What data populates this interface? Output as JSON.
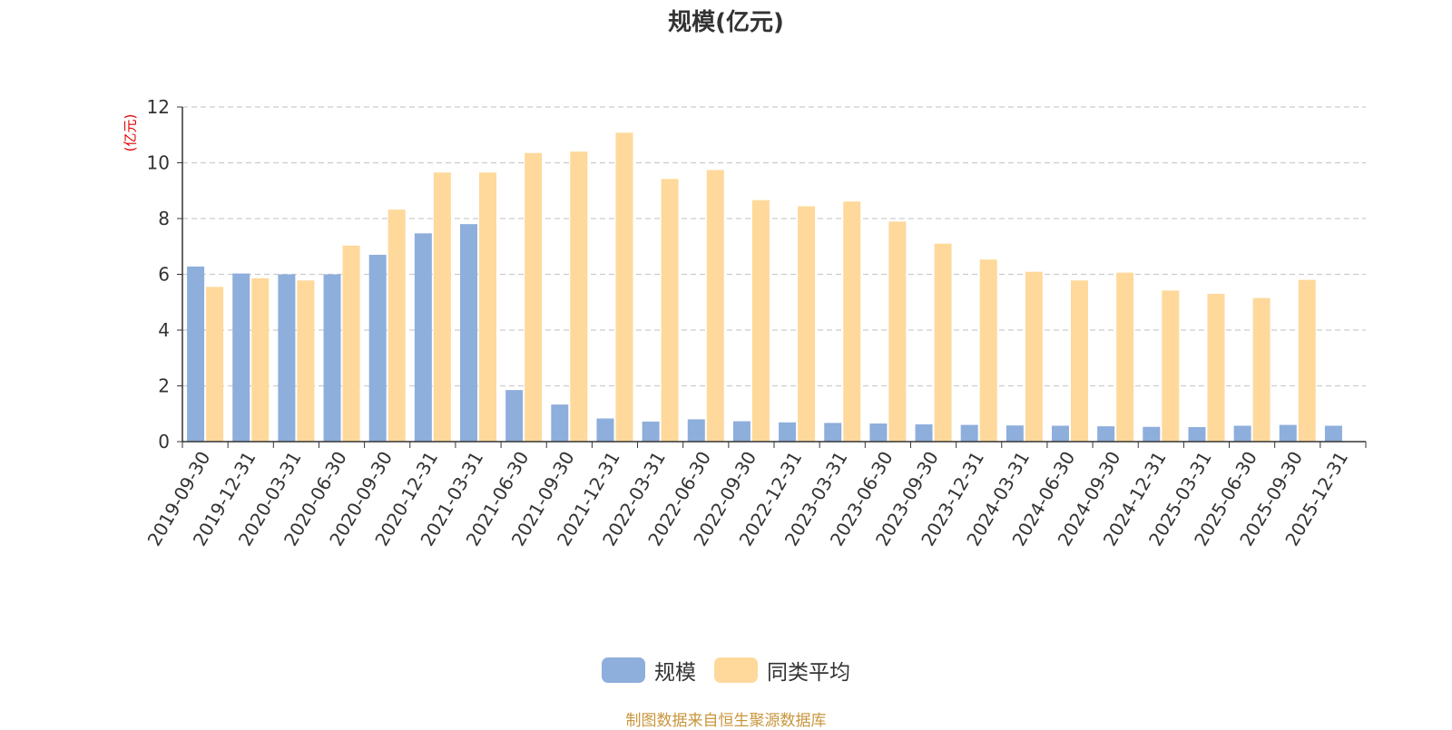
{
  "chart_data": {
    "type": "bar",
    "title": "规模(亿元)",
    "ylabel": "(亿元)",
    "xlabel": "",
    "ylim": [
      0,
      12
    ],
    "yticks": [
      0,
      2,
      4,
      6,
      8,
      10,
      12
    ],
    "grid": true,
    "legend_position": "bottom",
    "categories": [
      "2019-09-30",
      "2019-12-31",
      "2020-03-31",
      "2020-06-30",
      "2020-09-30",
      "2020-12-31",
      "2021-03-31",
      "2021-06-30",
      "2021-09-30",
      "2021-12-31",
      "2022-03-31",
      "2022-06-30",
      "2022-09-30",
      "2022-12-31",
      "2023-03-31",
      "2023-06-30",
      "2023-09-30",
      "2023-12-31",
      "2024-03-31",
      "2024-06-30",
      "2024-09-30",
      "2024-12-31",
      "2025-03-31",
      "2025-06-30",
      "2025-09-30",
      "2025-12-31"
    ],
    "series": [
      {
        "name": "规模",
        "color": "#8eaedc",
        "values": [
          6.28,
          6.03,
          6.0,
          6.0,
          6.7,
          7.47,
          7.8,
          1.85,
          1.33,
          0.83,
          0.72,
          0.8,
          0.73,
          0.69,
          0.67,
          0.65,
          0.62,
          0.6,
          0.58,
          0.57,
          0.55,
          0.53,
          0.52,
          0.57,
          0.6,
          0.57
        ]
      },
      {
        "name": "同类平均",
        "color": "#fed99b",
        "values": [
          5.55,
          5.86,
          5.78,
          7.03,
          8.32,
          9.65,
          9.65,
          10.35,
          10.4,
          11.08,
          9.42,
          9.74,
          8.66,
          8.44,
          8.61,
          7.89,
          7.1,
          6.53,
          6.09,
          5.78,
          6.06,
          5.42,
          5.3,
          5.15,
          5.8,
          null
        ]
      }
    ]
  },
  "source_text": "制图数据来自恒生聚源数据库"
}
